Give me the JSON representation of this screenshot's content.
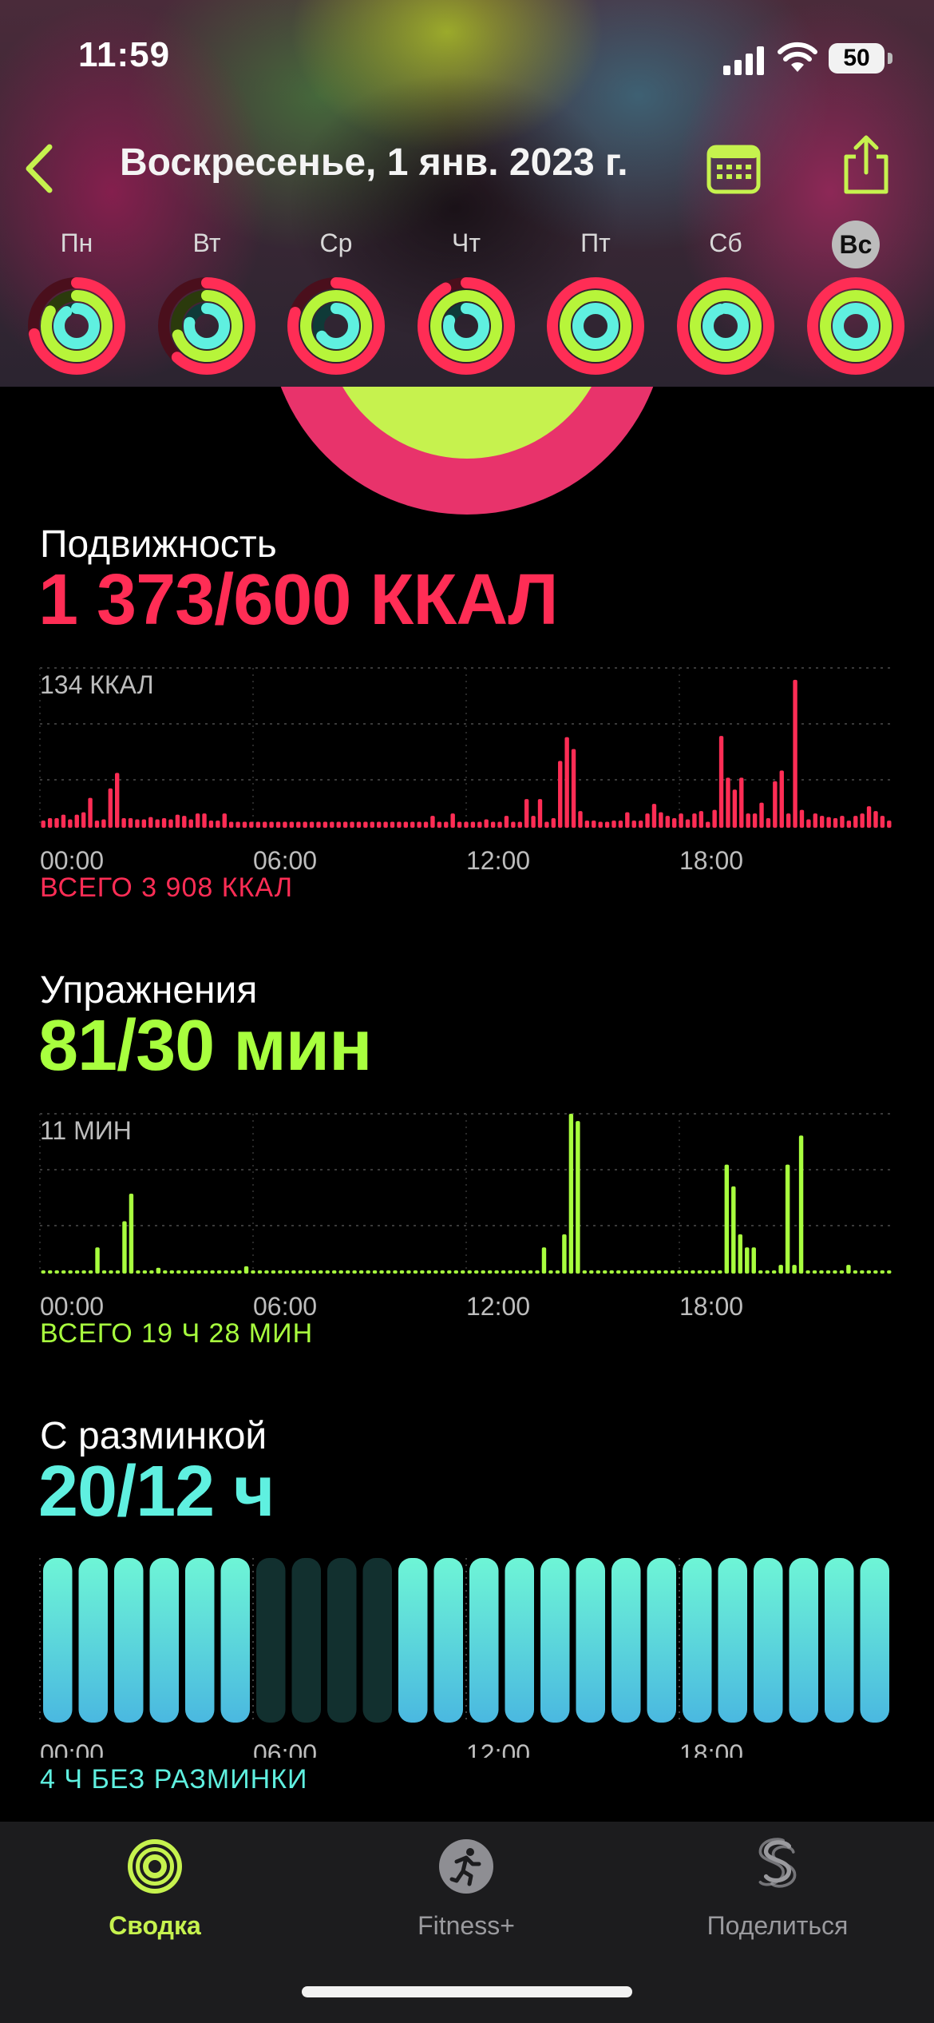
{
  "status_bar": {
    "time": "11:59",
    "battery": "50"
  },
  "nav": {
    "title": "Воскресенье, 1 янв. 2023 г."
  },
  "week": [
    {
      "label": "Пн",
      "move": 0.72,
      "exercise": 0.83,
      "stand": 0.9,
      "selected": false
    },
    {
      "label": "Вт",
      "move": 0.62,
      "exercise": 0.7,
      "stand": 0.78,
      "selected": false
    },
    {
      "label": "Ср",
      "move": 0.8,
      "exercise": 1.0,
      "stand": 0.65,
      "selected": false
    },
    {
      "label": "Чт",
      "move": 0.92,
      "exercise": 1.0,
      "stand": 0.8,
      "selected": false
    },
    {
      "label": "Пт",
      "move": 1.0,
      "exercise": 1.0,
      "stand": 1.0,
      "selected": false
    },
    {
      "label": "Сб",
      "move": 1.0,
      "exercise": 1.0,
      "stand": 0.95,
      "selected": false
    },
    {
      "label": "Вс",
      "move": 1.0,
      "exercise": 1.0,
      "stand": 1.0,
      "selected": true
    }
  ],
  "move": {
    "title": "Подвижность",
    "value": "1 373/600 ККАЛ",
    "scale_label": "134 ККАЛ",
    "total": "ВСЕГО 3 908 ККАЛ",
    "color": "#ff2d55",
    "chart_data": {
      "type": "bar",
      "unit": "kcal",
      "ylim": [
        0,
        134
      ],
      "x_ticks": [
        "00:00",
        "06:00",
        "12:00",
        "18:00"
      ],
      "values": [
        6,
        8,
        8,
        11,
        7,
        11,
        13,
        25,
        6,
        7,
        33,
        46,
        8,
        8,
        7,
        7,
        9,
        7,
        8,
        7,
        11,
        10,
        7,
        12,
        12,
        6,
        6,
        12,
        5,
        5,
        5,
        5,
        5,
        5,
        5,
        5,
        5,
        5,
        5,
        5,
        5,
        5,
        5,
        5,
        5,
        5,
        5,
        5,
        5,
        5,
        5,
        5,
        5,
        5,
        5,
        5,
        5,
        5,
        10,
        5,
        5,
        12,
        5,
        5,
        5,
        5,
        7,
        5,
        5,
        10,
        5,
        5,
        24,
        10,
        24,
        5,
        8,
        56,
        76,
        66,
        14,
        6,
        6,
        5,
        5,
        6,
        6,
        13,
        6,
        6,
        12,
        20,
        13,
        10,
        8,
        12,
        7,
        12,
        14,
        5,
        15,
        77,
        42,
        32,
        42,
        12,
        12,
        21,
        8,
        39,
        48,
        12,
        124,
        15,
        7,
        12,
        10,
        9,
        8,
        10,
        6,
        10,
        12,
        18,
        14,
        10,
        6
      ]
    }
  },
  "exercise": {
    "title": "Упражнения",
    "value": "81/30 мин",
    "scale_label": "11 МИН",
    "total": "ВСЕГО 19 Ч 28 МИН",
    "color": "#a8ff3e",
    "chart_data": {
      "type": "bar",
      "unit": "min",
      "ylim": [
        0,
        11
      ],
      "x_ticks": [
        "00:00",
        "06:00",
        "12:00",
        "18:00"
      ],
      "values": [
        0,
        0,
        0,
        0,
        0,
        0,
        0,
        0,
        1.8,
        0,
        0,
        0,
        3.6,
        5.5,
        0,
        0,
        0,
        0.4,
        0,
        0,
        0,
        0,
        0,
        0,
        0,
        0,
        0,
        0,
        0,
        0,
        0.5,
        0,
        0,
        0,
        0,
        0,
        0,
        0,
        0,
        0,
        0,
        0,
        0,
        0,
        0,
        0,
        0,
        0,
        0,
        0,
        0,
        0,
        0,
        0,
        0,
        0,
        0,
        0,
        0,
        0,
        0,
        0,
        0,
        0,
        0,
        0,
        0,
        0,
        0,
        0,
        0,
        0,
        0,
        0,
        1.8,
        0,
        0,
        2.7,
        11,
        10.5,
        0,
        0,
        0,
        0,
        0,
        0,
        0,
        0,
        0,
        0,
        0,
        0,
        0,
        0,
        0,
        0,
        0,
        0,
        0,
        0,
        0,
        7.5,
        6,
        2.7,
        1.8,
        1.8,
        0,
        0,
        0,
        0.6,
        7.5,
        0.6,
        9.5,
        0,
        0,
        0,
        0,
        0,
        0,
        0.6,
        0,
        0,
        0,
        0,
        0,
        0
      ]
    }
  },
  "stand": {
    "title": "С разминкой",
    "value": "20/12 ч",
    "total": "4 Ч БЕЗ РАЗМИНКИ",
    "color": "#5ff0e0",
    "chart_data": {
      "type": "bar",
      "unit": "stood hour",
      "x_ticks": [
        "00:00",
        "06:00",
        "12:00",
        "18:00"
      ],
      "values": [
        1,
        1,
        1,
        1,
        1,
        1,
        0,
        0,
        0,
        0,
        1,
        1,
        1,
        1,
        1,
        1,
        1,
        1,
        1,
        1,
        1,
        1,
        1,
        1
      ]
    }
  },
  "tabs": [
    {
      "label": "Сводка",
      "icon": "rings-icon",
      "active": true
    },
    {
      "label": "Fitness+",
      "icon": "running-figure-icon",
      "active": false
    },
    {
      "label": "Поделиться",
      "icon": "share-s-icon",
      "active": false
    }
  ],
  "colors": {
    "accent": "#c6f24e",
    "move": "#ff2d55",
    "exercise": "#a8ff3e",
    "stand": "#5ff0e0",
    "tab_inactive": "#9a9a9e"
  }
}
